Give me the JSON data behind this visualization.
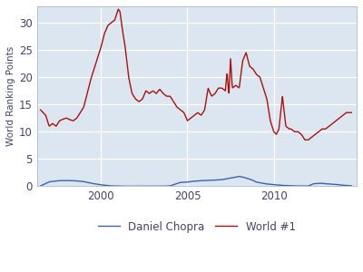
{
  "ylabel": "World Ranking Points",
  "plot_bg_color": "#dce6f0",
  "fig_bg_color": "#ffffff",
  "world1_color": "#aa1111",
  "chopra_color": "#4060b0",
  "legend_labels": [
    "Daniel Chopra",
    "World #1"
  ],
  "xlim": [
    1996.3,
    2014.8
  ],
  "ylim": [
    0,
    33
  ],
  "yticks": [
    0,
    5,
    10,
    15,
    20,
    25,
    30
  ],
  "xticks": [
    2000,
    2005,
    2010
  ],
  "world1_years": [
    1996.5,
    1996.8,
    1997.0,
    1997.2,
    1997.4,
    1997.6,
    1997.8,
    1998.0,
    1998.2,
    1998.4,
    1998.6,
    1998.8,
    1999.0,
    1999.2,
    1999.4,
    1999.6,
    1999.8,
    2000.0,
    2000.2,
    2000.4,
    2000.6,
    2000.8,
    2001.0,
    2001.1,
    2001.2,
    2001.4,
    2001.6,
    2001.8,
    2002.0,
    2002.2,
    2002.4,
    2002.6,
    2002.8,
    2003.0,
    2003.2,
    2003.4,
    2003.6,
    2003.8,
    2004.0,
    2004.2,
    2004.4,
    2004.6,
    2004.8,
    2005.0,
    2005.2,
    2005.4,
    2005.6,
    2005.8,
    2006.0,
    2006.2,
    2006.4,
    2006.6,
    2006.8,
    2007.0,
    2007.2,
    2007.3,
    2007.4,
    2007.5,
    2007.6,
    2007.8,
    2008.0,
    2008.2,
    2008.4,
    2008.6,
    2008.8,
    2009.0,
    2009.2,
    2009.4,
    2009.6,
    2009.8,
    2010.0,
    2010.15,
    2010.3,
    2010.5,
    2010.7,
    2010.9,
    2011.0,
    2011.2,
    2011.4,
    2011.6,
    2011.8,
    2012.0,
    2012.2,
    2012.4,
    2012.6,
    2012.8,
    2013.0,
    2013.2,
    2013.4,
    2013.6,
    2013.8,
    2014.0,
    2014.2,
    2014.5
  ],
  "world1_vals": [
    14.0,
    13.0,
    11.0,
    11.5,
    11.0,
    12.0,
    12.3,
    12.5,
    12.2,
    12.0,
    12.5,
    13.5,
    14.5,
    17.0,
    19.5,
    21.5,
    23.5,
    25.5,
    28.0,
    29.5,
    30.0,
    30.5,
    32.5,
    32.0,
    29.5,
    25.5,
    20.0,
    17.0,
    16.0,
    15.5,
    16.0,
    17.5,
    17.0,
    17.5,
    17.0,
    17.8,
    17.0,
    16.5,
    16.5,
    15.5,
    14.5,
    14.0,
    13.5,
    12.0,
    12.5,
    13.0,
    13.5,
    13.0,
    14.0,
    18.0,
    16.5,
    17.0,
    18.0,
    18.0,
    17.5,
    21.0,
    16.5,
    23.5,
    18.0,
    18.5,
    18.0,
    23.0,
    24.5,
    22.0,
    21.5,
    20.5,
    20.0,
    18.0,
    16.0,
    12.0,
    10.0,
    9.5,
    10.5,
    16.5,
    11.0,
    10.5,
    10.5,
    10.0,
    10.0,
    9.5,
    8.5,
    8.5,
    9.0,
    9.5,
    10.0,
    10.5,
    10.5,
    11.0,
    11.5,
    12.0,
    12.5,
    13.0,
    13.5,
    13.5
  ],
  "chopra_years": [
    1996.5,
    1997.0,
    1997.5,
    1998.0,
    1998.5,
    1999.0,
    1999.5,
    2000.0,
    2000.5,
    2001.0,
    2001.5,
    2002.0,
    2002.5,
    2003.0,
    2003.5,
    2004.0,
    2004.3,
    2004.6,
    2005.0,
    2005.3,
    2005.7,
    2006.0,
    2006.5,
    2007.0,
    2007.5,
    2008.0,
    2008.3,
    2008.7,
    2009.0,
    2009.5,
    2010.0,
    2010.5,
    2011.0,
    2011.5,
    2012.0,
    2012.3,
    2012.7,
    2013.0,
    2013.5,
    2014.0,
    2014.5
  ],
  "chopra_vals": [
    0.05,
    0.8,
    1.0,
    1.05,
    1.0,
    0.85,
    0.5,
    0.25,
    0.08,
    0.03,
    0.0,
    0.0,
    0.0,
    0.0,
    0.0,
    0.05,
    0.4,
    0.7,
    0.75,
    0.9,
    1.0,
    1.05,
    1.1,
    1.2,
    1.5,
    1.8,
    1.6,
    1.2,
    0.75,
    0.45,
    0.28,
    0.15,
    0.08,
    0.04,
    0.04,
    0.45,
    0.55,
    0.45,
    0.35,
    0.18,
    0.08
  ]
}
